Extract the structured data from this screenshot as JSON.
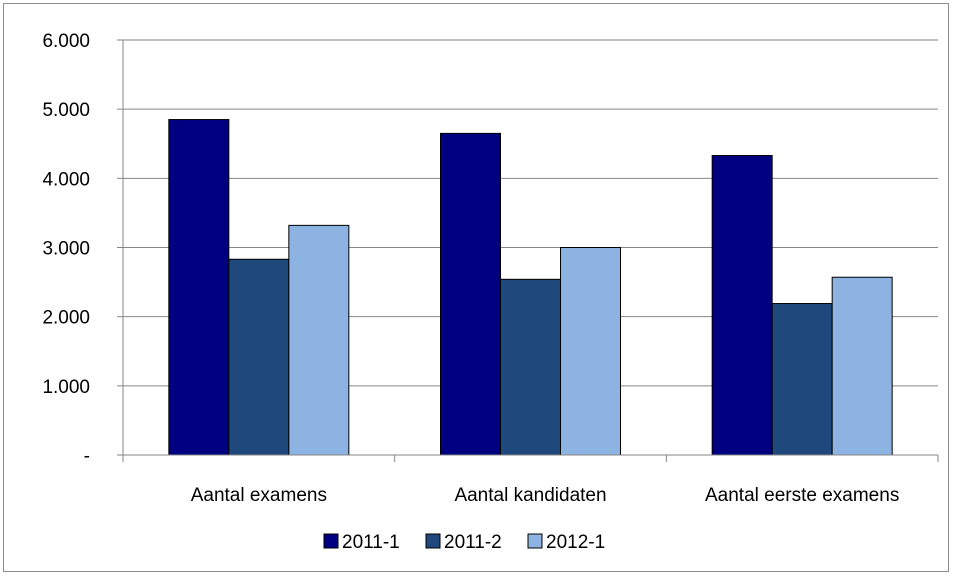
{
  "chart_data": {
    "type": "bar",
    "categories": [
      "Aantal examens",
      "Aantal kandidaten",
      "Aantal eerste examens"
    ],
    "series": [
      {
        "name": "2011-1",
        "values": [
          4850,
          4650,
          4330
        ]
      },
      {
        "name": "2011-2",
        "values": [
          2830,
          2540,
          2190
        ]
      },
      {
        "name": "2012-1",
        "values": [
          3320,
          3000,
          2570
        ]
      }
    ],
    "ylim": [
      0,
      6000
    ],
    "yticks": [
      0,
      1000,
      2000,
      3000,
      4000,
      5000,
      6000
    ],
    "ytick_labels": [
      "-",
      "1.000",
      "2.000",
      "3.000",
      "4.000",
      "5.000",
      "6.000"
    ],
    "grid": true,
    "legend_position": "bottom",
    "colors": [
      "#000080",
      "#1f497d",
      "#8db3e2"
    ],
    "title": "",
    "xlabel": "",
    "ylabel": ""
  }
}
